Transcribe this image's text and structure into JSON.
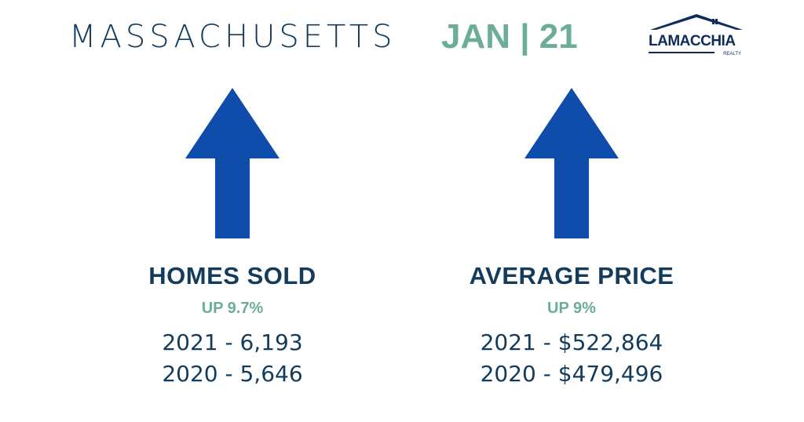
{
  "header": {
    "state": "MASSACHUSETTS",
    "period": "JAN | 21"
  },
  "logo": {
    "name": "LAMACCHIA",
    "sub": "REALTY"
  },
  "colors": {
    "navy": "#123b5c",
    "green": "#6cae95",
    "arrow_blue": "#0f4dac"
  },
  "metrics": [
    {
      "title": "HOMES SOLD",
      "change": "UP 9.7%",
      "direction": "up",
      "icon": "up-arrow-icon",
      "line_2021": "2021 - 6,193",
      "line_2020": "2020 - 5,646"
    },
    {
      "title": "AVERAGE PRICE",
      "change": "UP 9%",
      "direction": "up",
      "icon": "up-arrow-icon",
      "line_2021": "2021 - $522,864",
      "line_2020": "2020 - $479,496"
    }
  ]
}
